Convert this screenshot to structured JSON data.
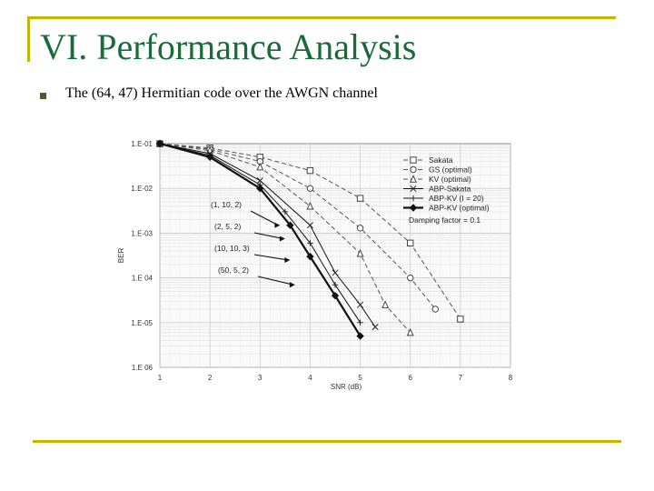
{
  "slide": {
    "title": "VI. Performance Analysis",
    "bullet": "The (64, 47) Hermitian code over the AWGN channel"
  },
  "colors": {
    "frame": "#c8b400",
    "title": "#1a6b3a"
  },
  "chart_data": {
    "type": "line",
    "xlabel": "SNR (dB)",
    "ylabel": "BER",
    "xlim": [
      1,
      8
    ],
    "x_ticks": [
      "1",
      "2",
      "3",
      "4",
      "5",
      "6",
      "7",
      "8"
    ],
    "y_ticks": [
      "1.E-01",
      "1.E-02",
      "1.E-03",
      "1.E 04",
      "1.E-05",
      "1.E 06"
    ],
    "ylim": [
      1e-06,
      0.1
    ],
    "y_scale": "log",
    "grid": true,
    "legend_position": "top-right",
    "legend_note": "Damping factor = 0.1",
    "series": [
      {
        "name": "Sakata",
        "style": "dashed",
        "marker": "square",
        "points": [
          [
            1,
            0.1
          ],
          [
            2,
            0.08
          ],
          [
            3,
            0.05
          ],
          [
            4,
            0.025
          ],
          [
            5,
            0.006
          ],
          [
            6,
            0.0006
          ],
          [
            7,
            1.2e-05
          ]
        ]
      },
      {
        "name": "GS (optimal)",
        "style": "dashed",
        "marker": "circle",
        "points": [
          [
            1,
            0.1
          ],
          [
            2,
            0.075
          ],
          [
            3,
            0.04
          ],
          [
            4,
            0.01
          ],
          [
            5,
            0.0013
          ],
          [
            6,
            0.0001
          ],
          [
            6.5,
            2e-05
          ]
        ]
      },
      {
        "name": "KV (optimal)",
        "style": "dashed",
        "marker": "triangle",
        "points": [
          [
            1,
            0.1
          ],
          [
            2,
            0.07
          ],
          [
            3,
            0.03
          ],
          [
            4,
            0.004
          ],
          [
            5,
            0.00035
          ],
          [
            5.5,
            2.5e-05
          ],
          [
            6,
            6e-06
          ]
        ]
      },
      {
        "name": "ABP-Sakata",
        "style": "solid",
        "marker": "x",
        "points": [
          [
            1,
            0.1
          ],
          [
            2,
            0.06
          ],
          [
            3,
            0.015
          ],
          [
            4,
            0.0015
          ],
          [
            4.5,
            0.00013
          ],
          [
            5,
            2.5e-05
          ],
          [
            5.3,
            8e-06
          ]
        ]
      },
      {
        "name": "ABP-KV (I = 20)",
        "style": "solid",
        "marker": "plus",
        "points": [
          [
            1,
            0.1
          ],
          [
            2,
            0.055
          ],
          [
            3,
            0.012
          ],
          [
            3.5,
            0.003
          ],
          [
            4,
            0.0006
          ],
          [
            4.5,
            7e-05
          ],
          [
            5,
            1e-05
          ]
        ]
      },
      {
        "name": "ABP-KV (optimal)",
        "style": "solid-bold",
        "marker": "diamond",
        "points": [
          [
            1,
            0.1
          ],
          [
            2,
            0.05
          ],
          [
            3,
            0.01
          ],
          [
            3.6,
            0.0015
          ],
          [
            4,
            0.0003
          ],
          [
            4.5,
            4e-05
          ],
          [
            5,
            5e-06
          ]
        ]
      }
    ],
    "annotations": [
      {
        "text": "(1, 10, 2)",
        "x": 3.4,
        "y": 0.0015
      },
      {
        "text": "(2, 5, 2)",
        "x": 3.5,
        "y": 0.00075
      },
      {
        "text": "(10, 10, 3)",
        "x": 3.6,
        "y": 0.00025
      },
      {
        "text": "(50, 5, 2)",
        "x": 3.7,
        "y": 7e-05
      }
    ]
  }
}
